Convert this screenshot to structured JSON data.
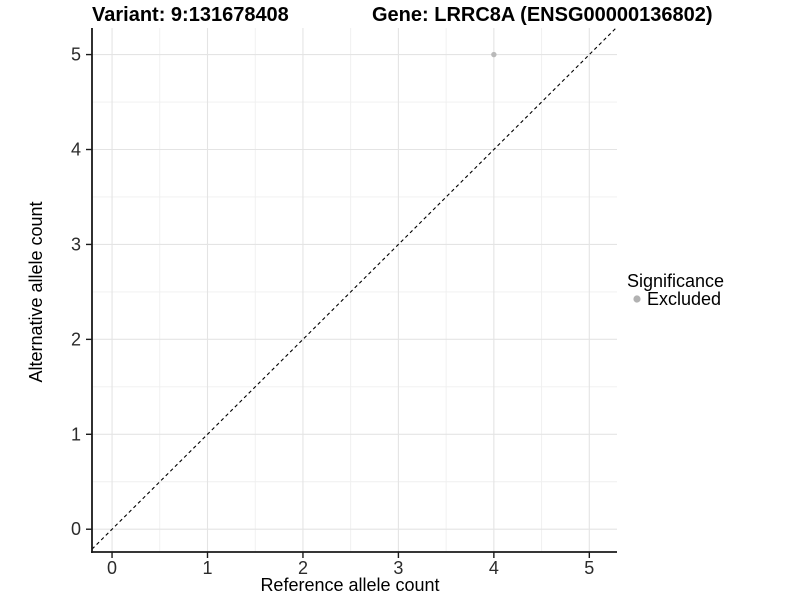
{
  "titles": {
    "variant": "Variant: 9:131678408",
    "gene": "Gene: LRRC8A (ENSG00000136802)"
  },
  "chart_data": {
    "type": "scatter",
    "title": "Variant: 9:131678408   Gene: LRRC8A (ENSG00000136802)",
    "xlabel": "Reference allele count",
    "ylabel": "Alternative allele count",
    "points": [
      {
        "x": 4,
        "y": 5,
        "series": "Excluded"
      }
    ],
    "series": [
      {
        "name": "Excluded",
        "color": "#b9b9b9",
        "values": [
          [
            4,
            5
          ]
        ]
      }
    ],
    "xticks": [
      0,
      1,
      2,
      3,
      4,
      5
    ],
    "yticks": [
      0,
      1,
      2,
      3,
      4,
      5
    ],
    "xminor": [
      0.5,
      1.5,
      2.5,
      3.5,
      4.5
    ],
    "yminor": [
      0.5,
      1.5,
      2.5,
      3.5,
      4.5
    ],
    "xlim": [
      -0.21,
      5.29
    ],
    "ylim": [
      -0.24,
      5.28
    ],
    "grid": "major+minor",
    "reference_line": {
      "type": "abline",
      "slope": 1,
      "intercept": 0,
      "style": "dashed",
      "color": "#000000"
    },
    "legend": {
      "position": "right",
      "title": "Significance",
      "items": [
        {
          "label": "Excluded",
          "color": "#b2b2b2"
        }
      ]
    },
    "colors": {
      "point": "#b9b9b9",
      "grid_major": "#e4e4e4",
      "grid_minor": "#efefef",
      "axis": "#1a1a1a",
      "reference_line": "#000000",
      "background": "#ffffff"
    }
  }
}
